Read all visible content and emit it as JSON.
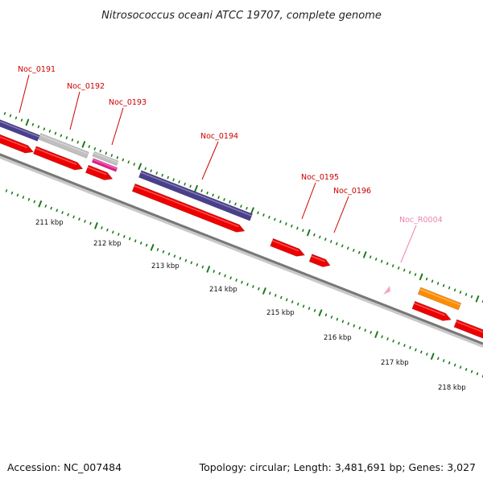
{
  "title": "Nitrosococcus oceani ATCC 19707, complete genome",
  "footer": {
    "accession": "Accession: NC_007484",
    "summary": "Topology: circular; Length: 3,481,691 bp; Genes: 3,027"
  },
  "colors": {
    "background": "#ffffff",
    "backbone": "#777777",
    "cds": "#ee0000",
    "gene_purple": "#4a3f8c",
    "gene_gray": "#c0c0c0",
    "gene_magenta": "#e8198c",
    "gene_orange": "#ff8c00",
    "rna_pink": "#f4a6c8",
    "tick_green": "#1a7a1a",
    "label_red": "#cc0000",
    "label_pink": "#f080b0"
  },
  "position_axis": {
    "unit": "kbp",
    "labels": [
      "211 kbp",
      "212 kbp",
      "213 kbp",
      "214 kbp",
      "215 kbp",
      "216 kbp",
      "217 kbp",
      "218 kbp"
    ]
  },
  "gene_labels": [
    {
      "text": "Noc_0191",
      "kind": "cds"
    },
    {
      "text": "Noc_0192",
      "kind": "cds"
    },
    {
      "text": "Noc_0193",
      "kind": "cds"
    },
    {
      "text": "Noc_0194",
      "kind": "cds"
    },
    {
      "text": "Noc_0195",
      "kind": "cds"
    },
    {
      "text": "Noc_0196",
      "kind": "cds"
    },
    {
      "text": "Noc_R0004",
      "kind": "rna"
    }
  ]
}
